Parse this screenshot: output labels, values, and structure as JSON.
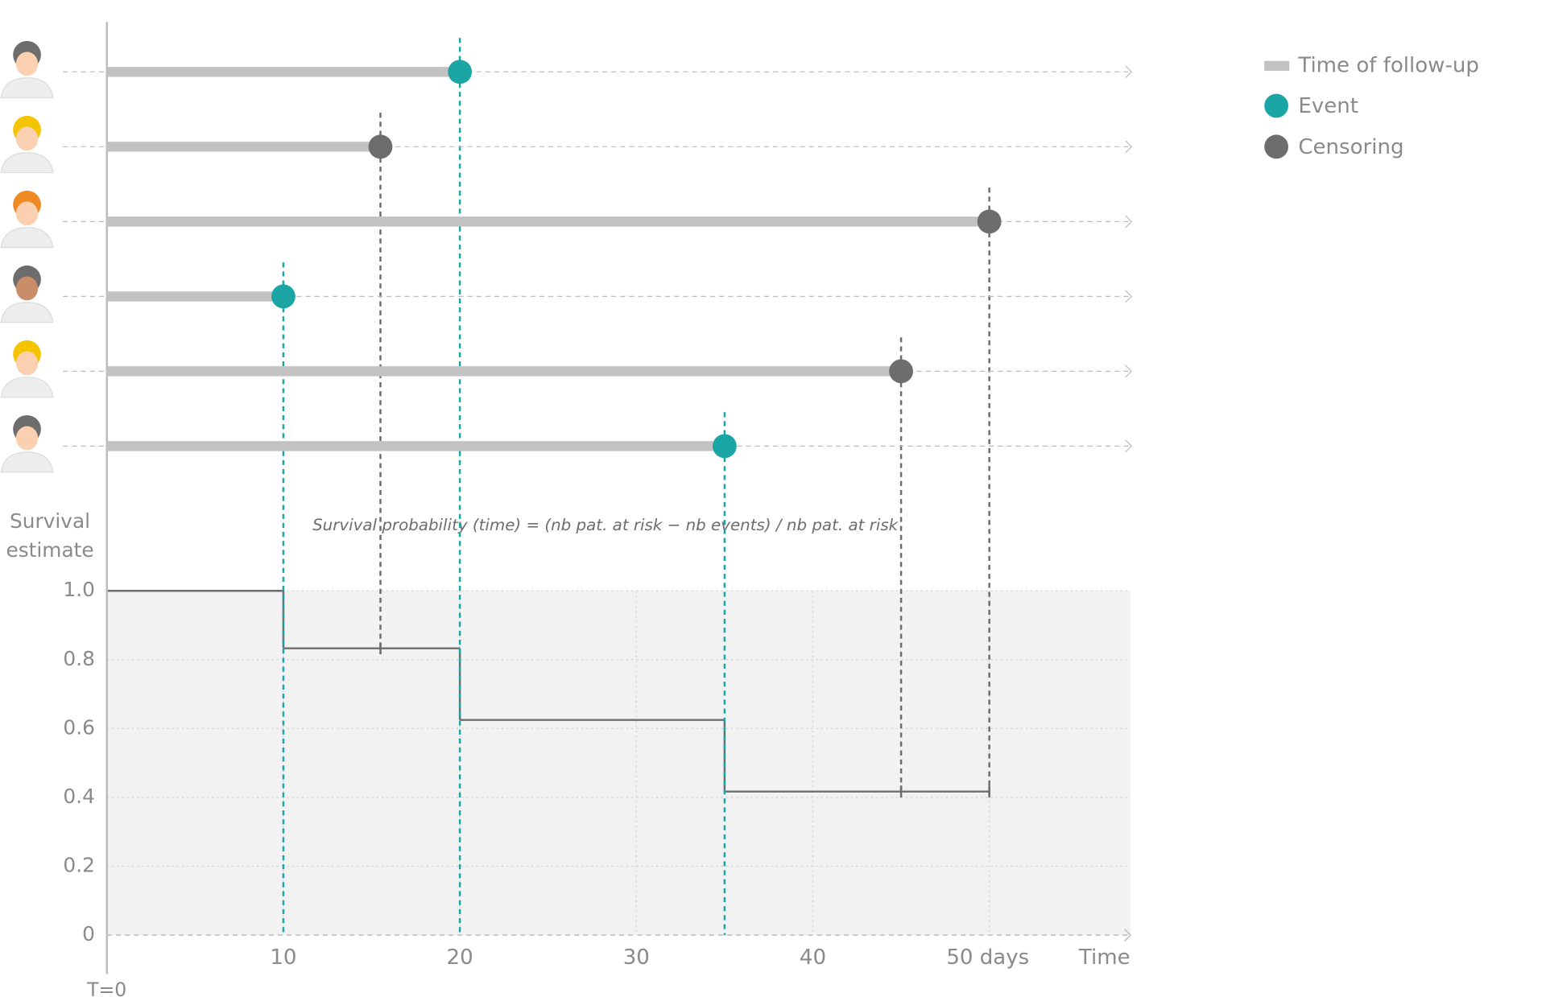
{
  "chart_data": {
    "type": "survival",
    "ylabel": "Survival estimate",
    "xlabel": "Time",
    "origin_label": "T=0",
    "formula": "Survival probability (time) = (nb pat. at risk − nb events) / nb pat. at risk",
    "legend": [
      {
        "name": "Time of follow-up",
        "color": "#c2c2c2"
      },
      {
        "name": "Event",
        "color": "#1ba5a5"
      },
      {
        "name": "Censoring",
        "color": "#6d6d6d"
      }
    ],
    "patients": {
      "times": [
        20,
        15.5,
        50,
        10,
        45,
        35
      ],
      "event": [
        true,
        false,
        false,
        true,
        false,
        true
      ]
    },
    "survival": {
      "x": [
        0,
        10,
        20,
        35
      ],
      "values": [
        1.0,
        0.833,
        0.625,
        0.417
      ]
    },
    "xlim": [
      0,
      58
    ],
    "xticks": [
      10,
      20,
      30,
      40,
      {
        "value": 50,
        "label": "50 days"
      }
    ],
    "ylim": [
      0,
      1
    ],
    "yticks": [
      0,
      0.2,
      0.4,
      0.6,
      0.8,
      {
        "value": 1,
        "label": "1.0"
      }
    ],
    "grid": true
  }
}
